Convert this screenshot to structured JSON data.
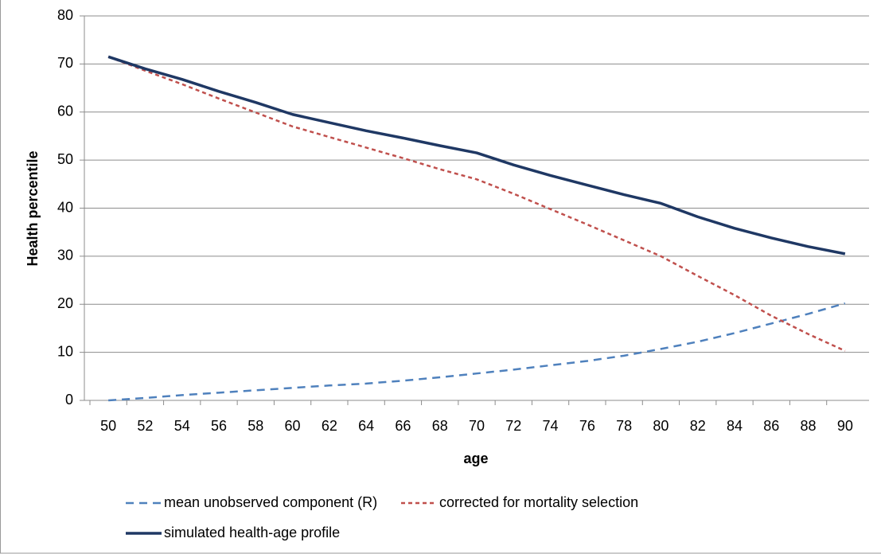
{
  "chart_data": {
    "type": "line",
    "x_label": "age",
    "y_label": "Health percentile",
    "categories": [
      "50",
      "52",
      "54",
      "56",
      "58",
      "60",
      "62",
      "64",
      "66",
      "68",
      "70",
      "72",
      "74",
      "76",
      "78",
      "80",
      "82",
      "84",
      "86",
      "88",
      "90"
    ],
    "series": [
      {
        "name": "mean unobserved component (R)",
        "color": "#4f81bd",
        "dash": "10,7",
        "width": 2.5,
        "values": [
          0,
          0.5,
          1.1,
          1.6,
          2.1,
          2.6,
          3.1,
          3.5,
          4.1,
          4.8,
          5.6,
          6.4,
          7.3,
          8.2,
          9.3,
          10.7,
          12.2,
          14,
          16,
          18,
          20.2
        ]
      },
      {
        "name": "corrected for mortality selection",
        "color": "#c0504d",
        "dash": "5,4",
        "width": 2.5,
        "values": [
          71.5,
          68.6,
          65.8,
          62.8,
          59.9,
          57,
          54.8,
          52.6,
          50.4,
          48.1,
          46,
          43,
          39.8,
          36.6,
          33.3,
          30,
          25.9,
          21.9,
          17.6,
          13.8,
          10.3
        ]
      },
      {
        "name": "simulated health-age profile",
        "color": "#1f3864",
        "dash": "none",
        "width": 3.5,
        "values": [
          71.5,
          69,
          66.8,
          64.3,
          62,
          59.5,
          57.8,
          56.1,
          54.6,
          53,
          51.5,
          49,
          46.8,
          44.8,
          42.8,
          41,
          38.2,
          35.8,
          33.8,
          32,
          30.5
        ]
      }
    ],
    "ylim": [
      0,
      80
    ],
    "yticks": [
      0,
      10,
      20,
      30,
      40,
      50,
      60,
      70,
      80
    ],
    "grid": true
  }
}
